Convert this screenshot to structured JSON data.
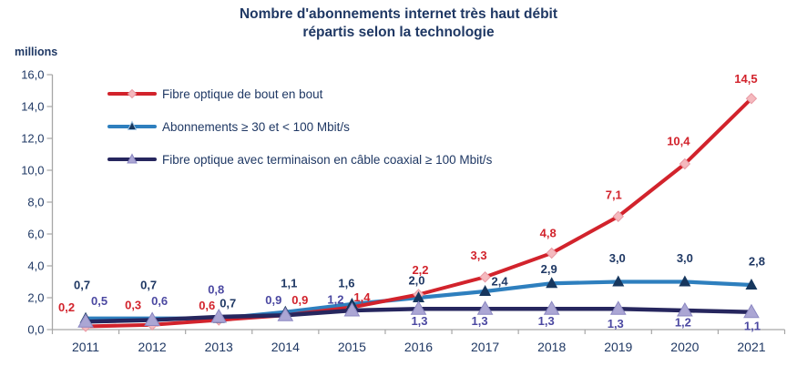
{
  "title": {
    "line1": "Nombre d'abonnements internet très haut débit",
    "line2": "répartis selon la technologie"
  },
  "y_axis": {
    "unit_label": "millions",
    "ticks": [
      "16,0",
      "14,0",
      "12,0",
      "10,0",
      "8,0",
      "6,0",
      "4,0",
      "2,0",
      "0,0"
    ]
  },
  "x_axis": {
    "years": [
      "2011",
      "2012",
      "2013",
      "2014",
      "2015",
      "2016",
      "2017",
      "2018",
      "2019",
      "2020",
      "2021"
    ]
  },
  "colors": {
    "title_text": "#1F3864",
    "axis_text": "#1F3864",
    "axis_line": "#A6A6A6"
  },
  "chart_data": {
    "type": "line",
    "title": "Nombre d'abonnements internet très haut débit répartis selon la technologie",
    "xlabel": "",
    "ylabel": "millions",
    "ylim": [
      0,
      16
    ],
    "ytick_step": 2,
    "grid": false,
    "legend_position": "top-left",
    "x": [
      "2011",
      "2012",
      "2013",
      "2014",
      "2015",
      "2016",
      "2017",
      "2018",
      "2019",
      "2020",
      "2021"
    ],
    "series": [
      {
        "name": "Fibre optique de bout en bout",
        "marker": "diamond",
        "line_color": "#D2232C",
        "marker_fill": "#F5B9BE",
        "marker_stroke": "#E89AA4",
        "label_color": "#D2232C",
        "values": [
          0.2,
          0.3,
          0.6,
          0.9,
          1.4,
          2.2,
          3.3,
          4.8,
          7.1,
          10.4,
          14.5
        ],
        "labels": [
          "0,2",
          "0,3",
          "0,6",
          "0,9",
          "1,4",
          "2,2",
          "3,3",
          "4,8",
          "7,1",
          "10,4",
          "14,5"
        ]
      },
      {
        "name": "Abonnements ≥ 30 et < 100 Mbit/s",
        "marker": "triangle",
        "line_color": "#2E7FBE",
        "marker_fill": "#17375E",
        "marker_stroke": "#17375E",
        "label_color": "#1F3864",
        "values": [
          0.7,
          0.7,
          0.7,
          1.1,
          1.6,
          2.0,
          2.4,
          2.9,
          3.0,
          3.0,
          2.8
        ],
        "labels": [
          "0,7",
          "0,7",
          "0,7",
          "1,1",
          "1,6",
          "2,0",
          "2,4",
          "2,9",
          "3,0",
          "3,0",
          "2,8"
        ]
      },
      {
        "name": "Fibre optique avec terminaison en câble coaxial ≥ 100 Mbit/s",
        "marker": "triangle",
        "line_color": "#26265E",
        "marker_fill": "#ABA6D4",
        "marker_stroke": "#8B87C2",
        "label_color": "#4B48A1",
        "values": [
          0.5,
          0.6,
          0.8,
          0.9,
          1.2,
          1.3,
          1.3,
          1.3,
          1.3,
          1.2,
          1.1
        ],
        "labels": [
          "0,5",
          "0,6",
          "0,8",
          "0,9",
          "1,2",
          "1,3",
          "1,3",
          "1,3",
          "1,3",
          "1,2",
          "1,1"
        ]
      }
    ]
  }
}
